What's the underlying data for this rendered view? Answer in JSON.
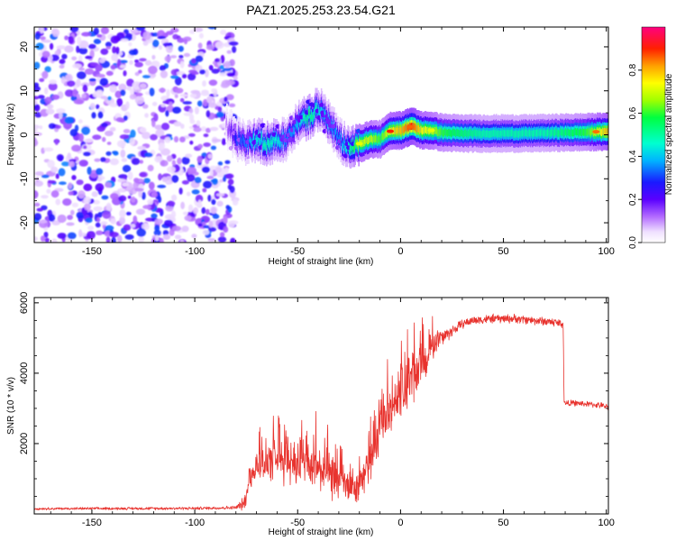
{
  "title": "PAZ1.2025.253.23.54.G21",
  "colors": {
    "background": "#ffffff",
    "axis": "#000000",
    "snr_line": "#e8332e"
  },
  "chart_data": [
    {
      "type": "heatmap",
      "xlabel": "Height of straight line (km)",
      "ylabel": "Frequency (Hz)",
      "xlim": [
        -178,
        101
      ],
      "ylim": [
        -24.5,
        24.5
      ],
      "xticks": [
        -150,
        -100,
        -50,
        0,
        50,
        100
      ],
      "xtick_labels": [
        "-150",
        "-100",
        "-50",
        "0",
        "50",
        "100"
      ],
      "yticks": [
        20,
        10,
        0,
        -10,
        -20
      ],
      "ytick_labels": [
        "20",
        "10",
        "0",
        "-10",
        "-20"
      ],
      "colorbar": {
        "label": "Normalized spectral amplitude",
        "range": [
          0,
          1
        ],
        "ticks": [
          0.0,
          0.2,
          0.4,
          0.6,
          0.8
        ],
        "tick_labels": [
          "0.0",
          "0.2",
          "0.4",
          "0.6",
          "0.8"
        ],
        "colormap": "rainbow (white → violet → blue → cyan → green → yellow → orange → red → magenta)"
      },
      "ridge": {
        "description": "Dominant frequency track vs height",
        "x": [
          -85,
          -80,
          -75,
          -70,
          -65,
          -60,
          -55,
          -50,
          -45,
          -40,
          -35,
          -30,
          -25,
          -20,
          -15,
          -10,
          -5,
          0,
          5,
          10,
          15,
          20,
          30,
          40,
          50,
          60,
          70,
          80,
          90,
          100
        ],
        "y": [
          2,
          -1,
          -2,
          -1,
          -2,
          -1,
          -1,
          3,
          4,
          6,
          3,
          -1,
          -3,
          -2,
          -1,
          -1,
          1,
          1,
          2,
          1,
          1,
          0.5,
          0.3,
          0.3,
          0.3,
          0.3,
          0.4,
          0.5,
          0.6,
          0.7
        ],
        "peak_amplitude": [
          0.1,
          0.3,
          0.35,
          0.45,
          0.5,
          0.45,
          0.35,
          0.4,
          0.55,
          0.45,
          0.4,
          0.35,
          0.5,
          0.7,
          0.7,
          0.6,
          0.75,
          0.8,
          0.9,
          0.75,
          0.7,
          0.6,
          0.55,
          0.5,
          0.5,
          0.5,
          0.5,
          0.55,
          0.6,
          0.8
        ]
      },
      "noise_region_x": [
        -178,
        -80
      ],
      "noise_amplitude_range": [
        0.05,
        0.35
      ]
    },
    {
      "type": "line",
      "xlabel": "Height of straight line (km)",
      "ylabel": "SNR (10 * v/v)",
      "xlim": [
        -178,
        101
      ],
      "ylim": [
        0,
        6150
      ],
      "xticks": [
        -150,
        -100,
        -50,
        0,
        50,
        100
      ],
      "xtick_labels": [
        "-150",
        "-100",
        "-50",
        "0",
        "50",
        "100"
      ],
      "yticks": [
        2000,
        4000,
        6000
      ],
      "ytick_labels": [
        "2000",
        "4000",
        "6000"
      ],
      "envelope": {
        "description": "Mean SNR and fluctuation amplitude vs height",
        "x": [
          -178,
          -100,
          -80,
          -76,
          -73,
          -70,
          -60,
          -50,
          -40,
          -30,
          -22,
          -18,
          -15,
          -10,
          -5,
          0,
          5,
          10,
          15,
          20,
          25,
          30,
          35,
          45,
          55,
          65,
          75,
          79,
          79.5,
          85,
          95,
          101
        ],
        "mean": [
          150,
          160,
          180,
          300,
          900,
          1400,
          1500,
          1500,
          1300,
          900,
          700,
          1000,
          1500,
          2300,
          3000,
          3400,
          3800,
          4200,
          4700,
          5000,
          5200,
          5400,
          5500,
          5550,
          5550,
          5500,
          5450,
          5400,
          3150,
          3150,
          3100,
          3050
        ],
        "spread": [
          40,
          50,
          60,
          250,
          400,
          600,
          700,
          900,
          800,
          700,
          500,
          500,
          600,
          800,
          900,
          1100,
          1000,
          800,
          500,
          300,
          200,
          150,
          150,
          150,
          150,
          150,
          150,
          150,
          100,
          100,
          100,
          100
        ]
      }
    }
  ]
}
